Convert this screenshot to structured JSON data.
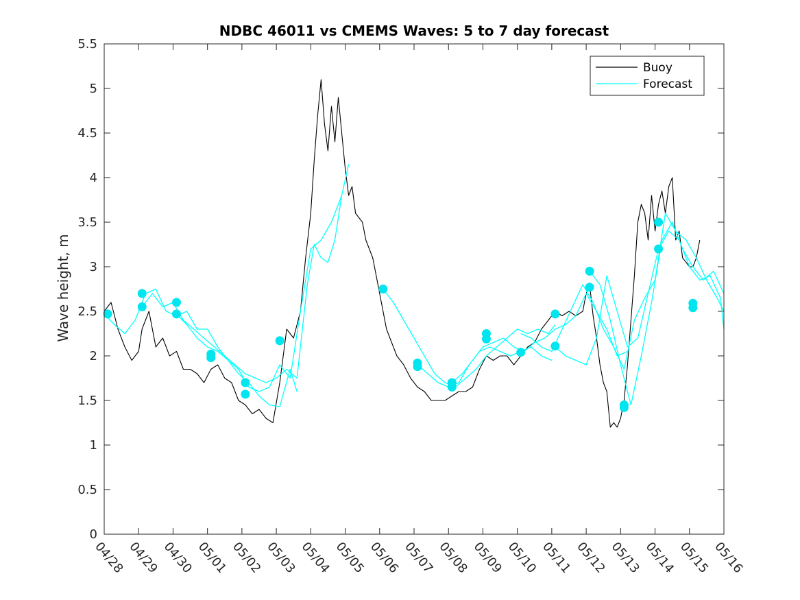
{
  "chart_data": {
    "type": "line",
    "title": "NDBC 46011 vs CMEMS Waves: 5 to 7 day forecast",
    "xlabel": "",
    "ylabel": "Wave height, m",
    "ylim": [
      0,
      5.5
    ],
    "yticks": [
      "0",
      "0.5",
      "1",
      "1.5",
      "2",
      "2.5",
      "3",
      "3.5",
      "4",
      "4.5",
      "5",
      "5.5"
    ],
    "xlim": [
      0,
      18
    ],
    "xticks": [
      "04/28",
      "04/29",
      "04/30",
      "05/01",
      "05/02",
      "05/03",
      "05/04",
      "05/05",
      "05/06",
      "05/07",
      "05/08",
      "05/09",
      "05/10",
      "05/11",
      "05/12",
      "05/13",
      "05/14",
      "05/15",
      "05/16"
    ],
    "grid": false,
    "legend": {
      "position": "top-right",
      "entries": [
        {
          "name": "Buoy",
          "color": "#000000"
        },
        {
          "name": "Forecast",
          "color": "#00ffff"
        }
      ]
    },
    "series": [
      {
        "name": "Buoy",
        "color": "#000000",
        "x": [
          0,
          0.2,
          0.4,
          0.6,
          0.8,
          1.0,
          1.1,
          1.3,
          1.5,
          1.7,
          1.9,
          2.1,
          2.3,
          2.5,
          2.7,
          2.9,
          3.1,
          3.3,
          3.5,
          3.7,
          3.9,
          4.1,
          4.3,
          4.5,
          4.7,
          4.9,
          5.1,
          5.3,
          5.5,
          5.7,
          5.85,
          6.0,
          6.1,
          6.2,
          6.3,
          6.4,
          6.5,
          6.6,
          6.7,
          6.8,
          6.9,
          7.0,
          7.1,
          7.2,
          7.3,
          7.4,
          7.5,
          7.6,
          7.7,
          7.8,
          7.9,
          8.0,
          8.1,
          8.2,
          8.3,
          8.5,
          8.7,
          8.9,
          9.1,
          9.3,
          9.5,
          9.7,
          9.9,
          10.1,
          10.3,
          10.5,
          10.7,
          10.9,
          11.1,
          11.3,
          11.5,
          11.7,
          11.9,
          12.1,
          12.3,
          12.5,
          12.7,
          12.9,
          13.1,
          13.3,
          13.5,
          13.7,
          13.9,
          14.0,
          14.1,
          14.2,
          14.3,
          14.4,
          14.5,
          14.6,
          14.7,
          14.8,
          14.9,
          15.0,
          15.1,
          15.2,
          15.3,
          15.4,
          15.5,
          15.6,
          15.7,
          15.8,
          15.9,
          16.0,
          16.1,
          16.2,
          16.3,
          16.4,
          16.5,
          16.6,
          16.7,
          16.8,
          16.9,
          17.0,
          17.1,
          17.2,
          17.3
        ],
        "y": [
          2.5,
          2.6,
          2.3,
          2.1,
          1.95,
          2.05,
          2.3,
          2.5,
          2.1,
          2.2,
          2.0,
          2.05,
          1.85,
          1.85,
          1.8,
          1.7,
          1.85,
          1.9,
          1.75,
          1.7,
          1.5,
          1.45,
          1.35,
          1.4,
          1.3,
          1.25,
          1.7,
          2.3,
          2.2,
          2.5,
          3.1,
          3.6,
          4.2,
          4.7,
          5.1,
          4.6,
          4.3,
          4.8,
          4.4,
          4.9,
          4.5,
          4.1,
          3.8,
          3.9,
          3.6,
          3.55,
          3.5,
          3.3,
          3.2,
          3.1,
          2.9,
          2.7,
          2.5,
          2.3,
          2.2,
          2.0,
          1.9,
          1.75,
          1.65,
          1.6,
          1.5,
          1.5,
          1.5,
          1.55,
          1.6,
          1.6,
          1.65,
          1.85,
          2.0,
          1.95,
          2.0,
          2.0,
          1.9,
          2.0,
          2.1,
          2.15,
          2.3,
          2.4,
          2.5,
          2.45,
          2.5,
          2.45,
          2.5,
          2.7,
          2.8,
          2.45,
          2.2,
          1.9,
          1.7,
          1.6,
          1.2,
          1.25,
          1.2,
          1.3,
          1.5,
          1.9,
          2.4,
          2.9,
          3.5,
          3.7,
          3.6,
          3.3,
          3.8,
          3.4,
          3.7,
          3.85,
          3.6,
          3.9,
          4.0,
          3.3,
          3.4,
          3.1,
          3.05,
          3.0,
          3.0,
          3.1,
          3.3
        ]
      },
      {
        "name": "Forecast",
        "color": "#00ffff",
        "x": [
          0,
          0.3,
          0.6,
          0.9,
          1.2,
          1.5,
          1.8,
          2.1,
          2.4,
          2.7,
          3.0,
          3.3,
          3.6,
          3.9,
          4.2,
          4.5,
          4.8,
          5.1,
          5.4,
          5.6
        ],
        "y": [
          2.47,
          2.35,
          2.25,
          2.4,
          2.7,
          2.75,
          2.5,
          2.45,
          2.5,
          2.3,
          2.3,
          2.1,
          1.95,
          1.8,
          1.7,
          1.55,
          1.45,
          1.43,
          1.85,
          1.6
        ]
      },
      {
        "name": "",
        "color": "#00ffff",
        "x": [
          1.1,
          1.4,
          1.7,
          2.0,
          2.3,
          2.6,
          2.9,
          3.2,
          3.5,
          3.8,
          4.1,
          4.4,
          4.7,
          5.0,
          5.3,
          5.6,
          5.9,
          6.1,
          6.3,
          6.5,
          6.7,
          6.9
        ],
        "y": [
          2.55,
          2.7,
          2.55,
          2.6,
          2.4,
          2.3,
          2.2,
          2.1,
          2.0,
          1.9,
          1.8,
          1.75,
          1.7,
          1.75,
          1.85,
          1.75,
          2.8,
          3.25,
          3.1,
          3.05,
          3.3,
          3.8
        ]
      },
      {
        "name": "",
        "color": "#00ffff",
        "x": [
          2.1,
          2.4,
          2.7,
          3.0,
          3.3,
          3.6,
          3.9,
          4.2,
          4.5,
          4.8,
          5.1,
          5.4,
          5.7,
          6.0,
          6.3,
          6.6,
          6.9,
          7.1
        ],
        "y": [
          2.47,
          2.35,
          2.2,
          2.1,
          2.05,
          1.95,
          1.85,
          1.65,
          1.6,
          1.65,
          1.9,
          1.75,
          2.5,
          3.2,
          3.3,
          3.5,
          3.8,
          4.15
        ]
      },
      {
        "name": "",
        "color": "#00ffff",
        "x": [
          8.1,
          8.4,
          8.7,
          9.0,
          9.3,
          9.6,
          9.9,
          10.2,
          10.5,
          10.8,
          11.1,
          11.4,
          11.7,
          12.0,
          12.3,
          12.6,
          12.9,
          13.1
        ],
        "y": [
          2.75,
          2.6,
          2.4,
          2.2,
          2.0,
          1.8,
          1.7,
          1.65,
          1.75,
          1.85,
          2.0,
          2.1,
          2.2,
          2.3,
          2.25,
          2.3,
          2.25,
          2.35
        ]
      },
      {
        "name": "",
        "color": "#00ffff",
        "x": [
          9.1,
          9.4,
          9.7,
          10.0,
          10.3,
          10.6,
          10.9,
          11.2,
          11.5,
          11.8,
          12.1,
          12.4,
          12.7,
          13.0
        ],
        "y": [
          1.9,
          1.8,
          1.7,
          1.65,
          1.7,
          1.9,
          2.05,
          2.1,
          2.05,
          2.0,
          2.05,
          2.1,
          2.0,
          1.95
        ]
      },
      {
        "name": "",
        "color": "#00ffff",
        "x": [
          10.1,
          10.4,
          10.7,
          11.0,
          11.3,
          11.6,
          11.9,
          12.2,
          12.5,
          12.8,
          13.1,
          13.4,
          13.7,
          14.0,
          14.3,
          14.6,
          14.9,
          15.2
        ],
        "y": [
          1.7,
          1.8,
          1.95,
          2.1,
          2.15,
          2.2,
          2.1,
          2.05,
          2.15,
          2.2,
          2.3,
          2.35,
          2.45,
          2.7,
          2.5,
          2.3,
          2.0,
          2.05
        ]
      },
      {
        "name": "",
        "color": "#00ffff",
        "x": [
          12.1,
          12.4,
          12.7,
          13.0,
          13.3,
          13.6,
          13.9,
          14.2,
          14.5,
          14.8,
          15.1,
          15.4,
          15.7,
          16.0,
          16.3,
          16.6,
          16.9,
          17.2,
          17.5,
          17.8,
          18.0
        ],
        "y": [
          2.25,
          2.2,
          2.1,
          2.05,
          2.3,
          2.55,
          2.8,
          2.6,
          2.3,
          2.1,
          1.85,
          2.4,
          2.65,
          2.85,
          3.6,
          3.4,
          3.3,
          3.1,
          2.85,
          2.65,
          2.5
        ]
      },
      {
        "name": "",
        "color": "#00ffff",
        "x": [
          13.1,
          13.4,
          13.7,
          14.0,
          14.3,
          14.6,
          14.9,
          15.2,
          15.5,
          15.8,
          16.1,
          16.4,
          16.7,
          17.0,
          17.3,
          17.6,
          17.9,
          18.0
        ],
        "y": [
          2.1,
          2.0,
          1.95,
          1.9,
          2.2,
          2.9,
          2.5,
          2.1,
          2.2,
          2.7,
          3.2,
          3.4,
          3.3,
          3.0,
          2.85,
          2.9,
          2.65,
          2.3
        ]
      },
      {
        "name": "",
        "color": "#00ffff",
        "x": [
          14.1,
          14.4,
          14.7,
          15.0,
          15.3,
          15.6,
          15.9,
          16.2,
          16.5,
          16.8,
          17.1,
          17.4,
          17.7,
          18.0
        ],
        "y": [
          2.95,
          2.8,
          2.4,
          1.9,
          1.45,
          2.0,
          2.6,
          3.3,
          3.5,
          3.2,
          3.0,
          2.85,
          2.95,
          2.7
        ]
      }
    ],
    "markers": {
      "color": "#00e5ee",
      "x": [
        0.1,
        1.1,
        1.1,
        2.1,
        2.1,
        3.1,
        3.1,
        4.1,
        4.1,
        5.1,
        8.1,
        9.1,
        9.1,
        10.1,
        10.1,
        11.1,
        11.1,
        12.1,
        13.1,
        13.1,
        14.1,
        14.1,
        15.1,
        15.1,
        16.1,
        16.1,
        17.1,
        17.1
      ],
      "y": [
        2.47,
        2.7,
        2.55,
        2.6,
        2.47,
        2.02,
        1.98,
        1.7,
        1.57,
        2.17,
        2.75,
        1.92,
        1.88,
        1.7,
        1.65,
        2.25,
        2.19,
        2.04,
        2.47,
        2.11,
        2.95,
        2.77,
        1.45,
        1.42,
        3.5,
        3.2,
        2.59,
        2.54
      ]
    }
  }
}
